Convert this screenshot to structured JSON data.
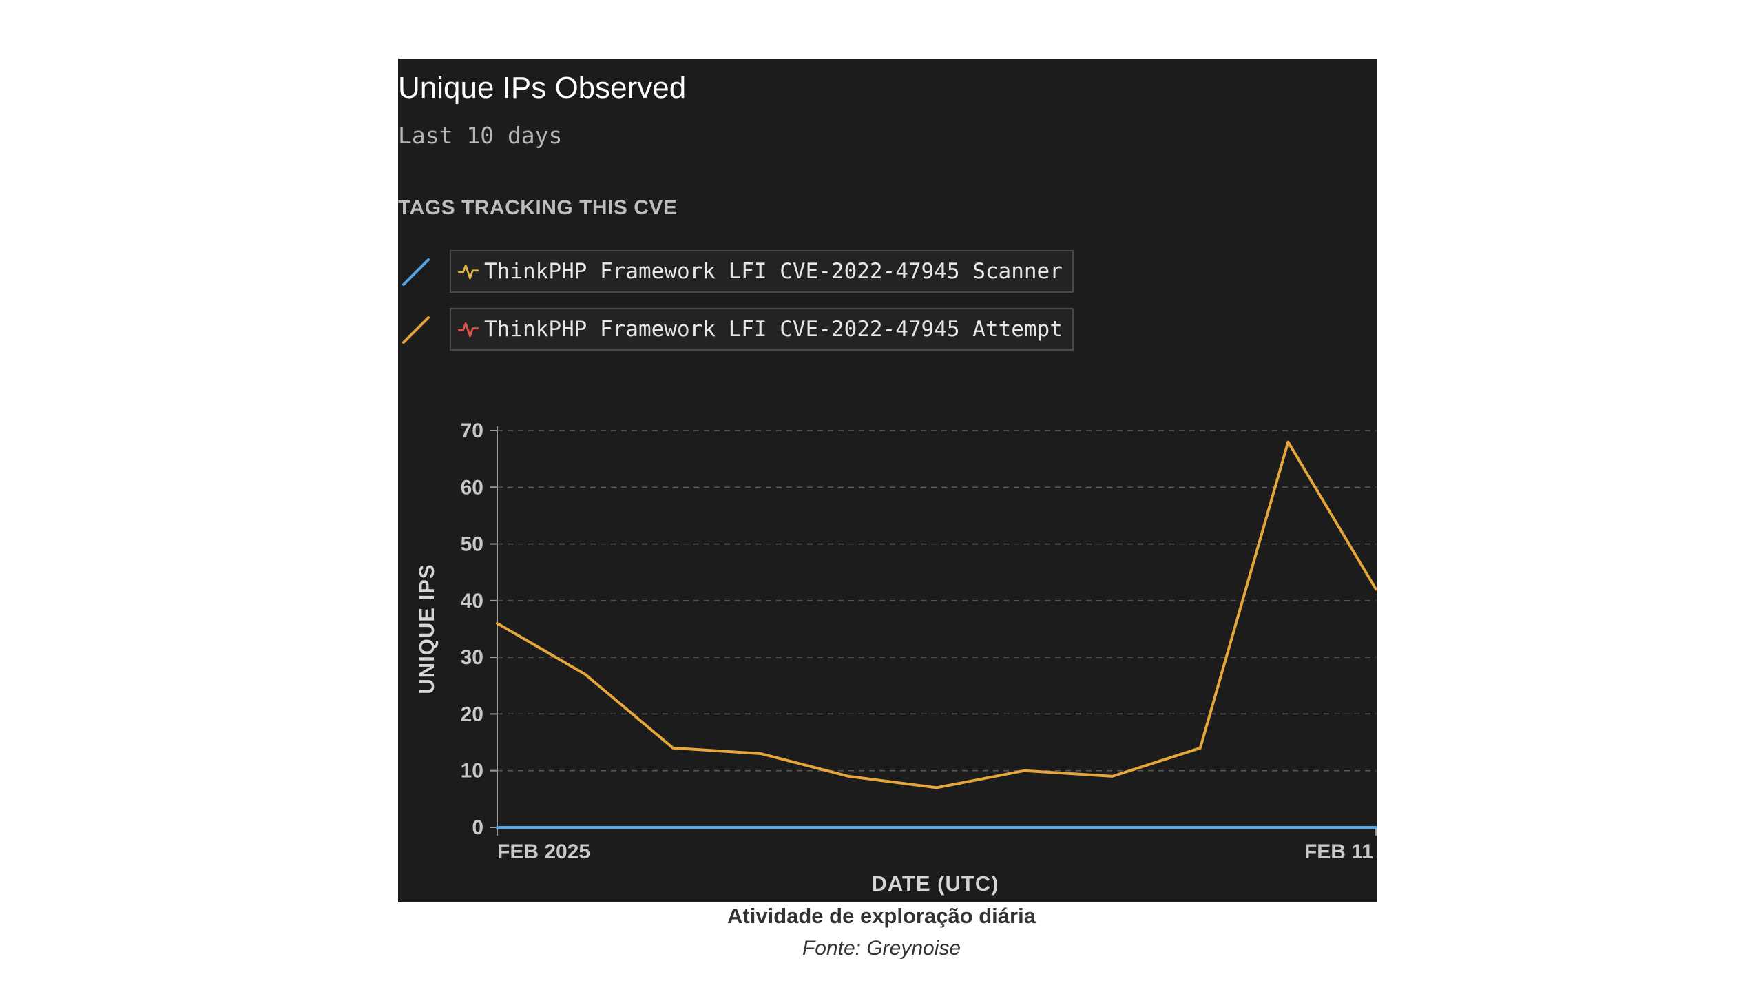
{
  "header": {
    "title": "Unique IPs Observed",
    "subtitle": "Last 10 days",
    "tags_heading": "TAGS TRACKING THIS CVE"
  },
  "legend": [
    {
      "label": "ThinkPHP Framework LFI CVE-2022-47945 Scanner",
      "line_color": "#5aa7e6",
      "icon": "activity-icon",
      "icon_color": "#e3b341"
    },
    {
      "label": "ThinkPHP Framework LFI CVE-2022-47945 Attempt",
      "line_color": "#e5a63a",
      "icon": "activity-icon",
      "icon_color": "#e5534b"
    }
  ],
  "chart_data": {
    "type": "line",
    "title": "Unique IPs Observed",
    "subtitle": "Last 10 days",
    "xlabel": "DATE (UTC)",
    "ylabel": "UNIQUE IPS",
    "x_tick_labels": [
      "FEB 2025",
      "FEB 11"
    ],
    "x": [
      "2025-02-01",
      "2025-02-02",
      "2025-02-03",
      "2025-02-04",
      "2025-02-05",
      "2025-02-06",
      "2025-02-07",
      "2025-02-08",
      "2025-02-09",
      "2025-02-10",
      "2025-02-11"
    ],
    "ylim": [
      0,
      70
    ],
    "yticks": [
      0,
      10,
      20,
      30,
      40,
      50,
      60,
      70
    ],
    "grid": true,
    "series": [
      {
        "name": "ThinkPHP Framework LFI CVE-2022-47945 Scanner",
        "color": "#5aa7e6",
        "values": [
          0,
          0,
          0,
          0,
          0,
          0,
          0,
          0,
          0,
          0,
          0
        ]
      },
      {
        "name": "ThinkPHP Framework LFI CVE-2022-47945 Attempt",
        "color": "#e5a63a",
        "values": [
          36,
          27,
          14,
          13,
          9,
          7,
          10,
          9,
          14,
          68,
          42
        ]
      }
    ]
  },
  "caption": {
    "main": "Atividade de exploração diária",
    "source": "Fonte: Greynoise"
  }
}
